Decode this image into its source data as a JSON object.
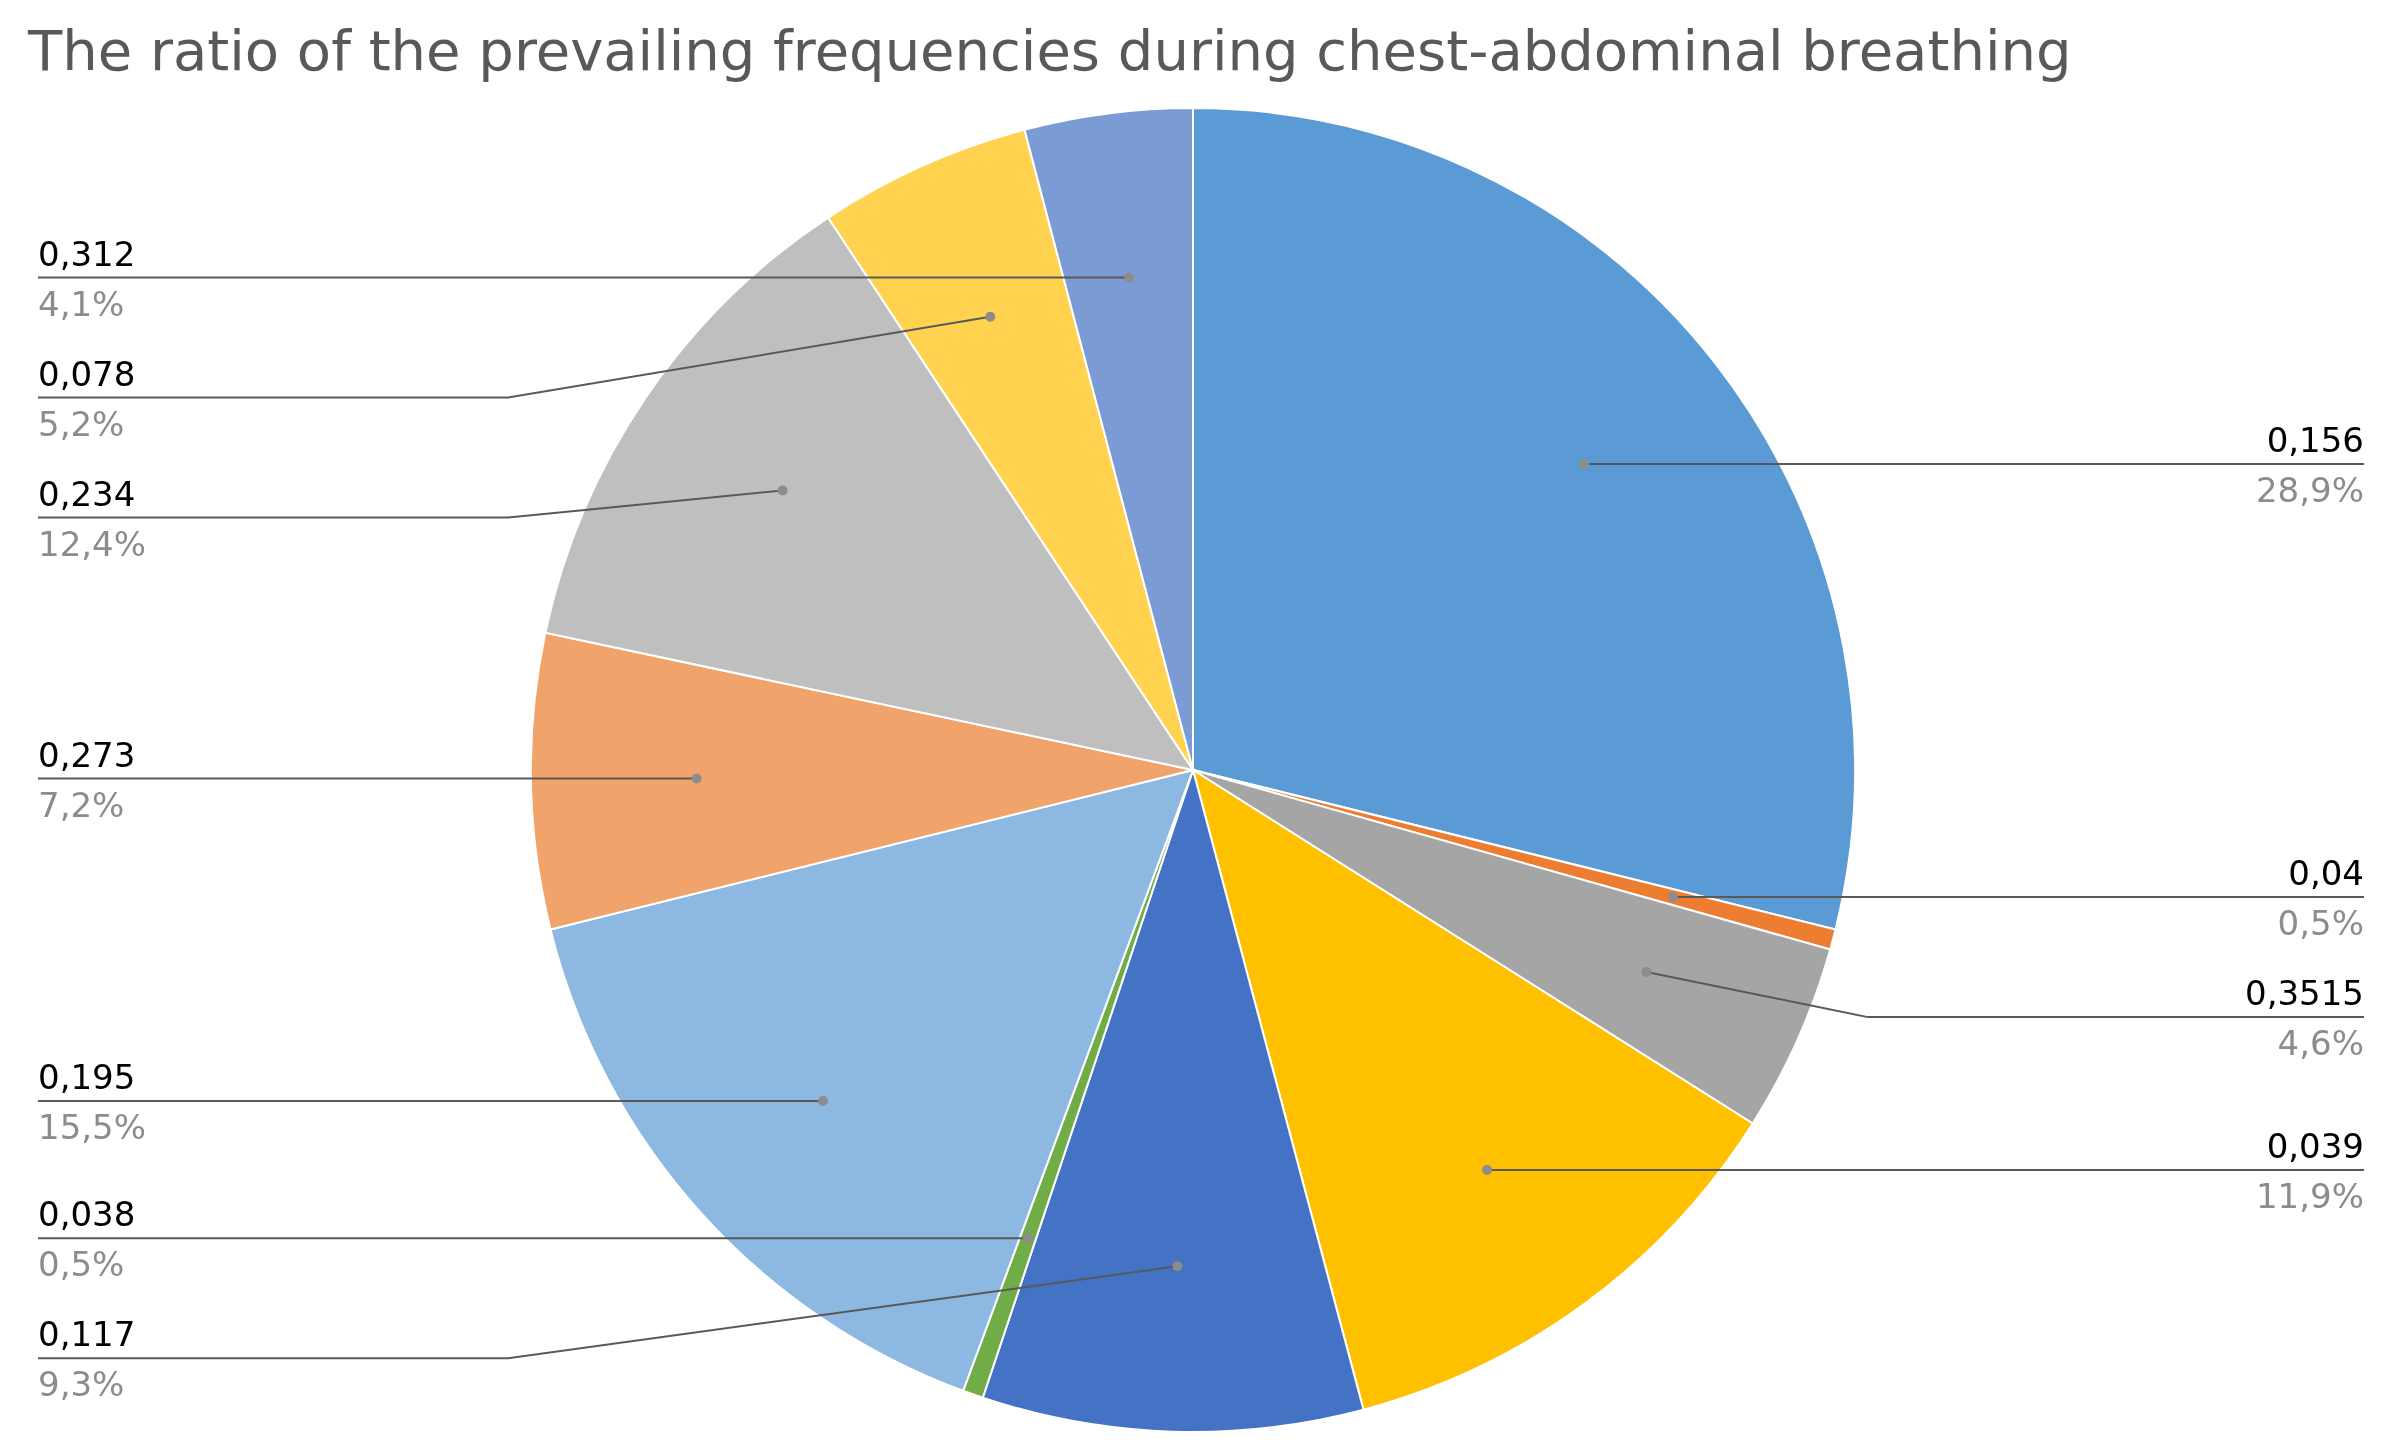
{
  "chart_data": {
    "type": "pie",
    "title": "The ratio of the prevailing frequencies during chest-abdominal breathing",
    "categories": [
      "0,156",
      "0,04",
      "0,3515",
      "0,039",
      "0,117",
      "0,038",
      "0,195",
      "0,273",
      "0,234",
      "0,078",
      "0,312"
    ],
    "values": [
      28.9,
      0.5,
      4.6,
      11.9,
      9.3,
      0.5,
      15.5,
      7.2,
      12.4,
      5.2,
      4.1
    ],
    "value_labels": [
      "28,9%",
      "0,5%",
      "4,6%",
      "11,9%",
      "9,3%",
      "0,5%",
      "15,5%",
      "7,2%",
      "12,4%",
      "5,2%",
      "4,1%"
    ],
    "colors": [
      "#5b9bd5",
      "#ed7d31",
      "#a5a5a5",
      "#ffc000",
      "#4472c4",
      "#70ad47",
      "#8db8e2",
      "#f0a46c",
      "#bfbfbf",
      "#ffd34f",
      "#7b9bd5"
    ]
  }
}
